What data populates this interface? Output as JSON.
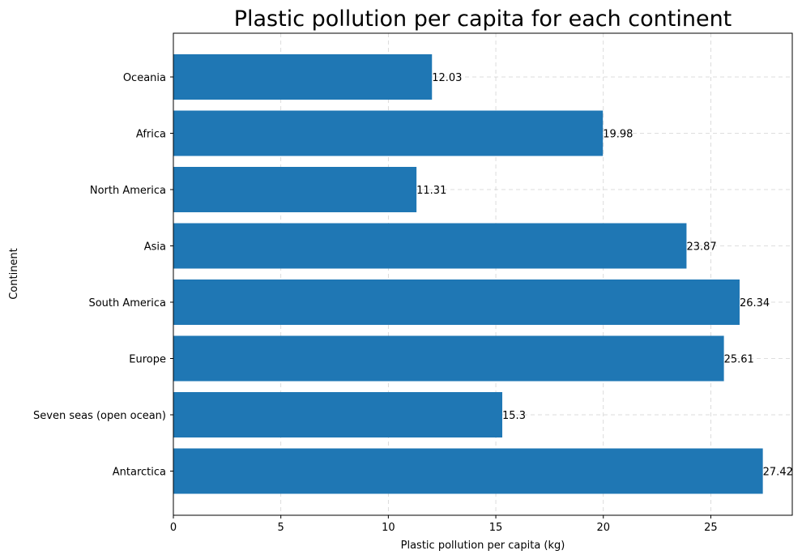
{
  "chart_data": {
    "type": "bar",
    "orientation": "horizontal",
    "title": "Plastic pollution per capita for each continent",
    "xlabel": "Plastic pollution per capita (kg)",
    "ylabel": "Continent",
    "categories": [
      "Antarctica",
      "Seven seas (open ocean)",
      "Europe",
      "South America",
      "Asia",
      "North America",
      "Africa",
      "Oceania"
    ],
    "values": [
      27.42,
      15.3,
      25.61,
      26.34,
      23.87,
      11.31,
      19.98,
      12.03
    ],
    "data_labels": [
      "27.42",
      "15.3",
      "25.61",
      "26.34",
      "23.87",
      "11.31",
      "19.98",
      "12.03"
    ],
    "xlim": [
      0,
      28.79
    ],
    "xticks": [
      0,
      5,
      10,
      15,
      20,
      25
    ],
    "xtick_labels": [
      "0",
      "5",
      "10",
      "15",
      "20",
      "25"
    ],
    "grid": true,
    "bar_color": "#1f77b4"
  }
}
